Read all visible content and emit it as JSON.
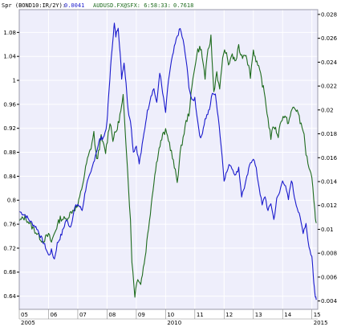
{
  "legend": {
    "series1_label": "Spr (BOND10:IR/2Y):",
    "series1_value": "0.0041",
    "series2_label": "AUDUSD.FX@SFX: 6:58:33:",
    "series2_value": "0.7618"
  },
  "colors": {
    "series1": "#1a1acd",
    "series2": "#1e6b1e",
    "plot_bg": "#eeeefb",
    "grid": "#ffffff",
    "frame": "#9a9aaa"
  },
  "chart_data": {
    "type": "line",
    "x_range": [
      2005.0,
      2015.2
    ],
    "x_tick_labels": [
      "05",
      "06",
      "07",
      "08",
      "09",
      "10",
      "11",
      "12",
      "13",
      "14",
      "15"
    ],
    "x_year_labels": [
      "2005",
      "2010",
      "2015"
    ],
    "left_axis": {
      "range": [
        0.618,
        1.118
      ],
      "ticks": [
        0.64,
        0.68,
        0.72,
        0.76,
        0.8,
        0.84,
        0.88,
        0.92,
        0.96,
        1.0,
        1.04,
        1.08
      ],
      "tick_labels": [
        "0.64",
        "0.68",
        "0.72",
        "0.76",
        "0.8",
        "0.84",
        "0.88",
        "0.92",
        "0.96",
        "1",
        "1.04",
        "1.08"
      ]
    },
    "right_axis": {
      "range": [
        0.0033,
        0.0284
      ],
      "ticks": [
        0.004,
        0.006,
        0.008,
        0.01,
        0.012,
        0.014,
        0.016,
        0.018,
        0.02,
        0.022,
        0.024,
        0.026,
        0.028
      ],
      "tick_labels": [
        "0.004",
        "0.006",
        "0.008",
        "0.01",
        "0.012",
        "0.014",
        "0.016",
        "0.018",
        "0.02",
        "0.022",
        "0.024",
        "0.026",
        "0.028"
      ]
    },
    "series": [
      {
        "name": "Spr (BOND10:IR/2Y)",
        "axis": "right",
        "x": [
          2005.0,
          2005.2,
          2005.4,
          2005.6,
          2005.75,
          2005.9,
          2006.0,
          2006.1,
          2006.2,
          2006.3,
          2006.45,
          2006.6,
          2006.75,
          2006.9,
          2007.0,
          2007.15,
          2007.3,
          2007.45,
          2007.6,
          2007.75,
          2007.9,
          2008.0,
          2008.05,
          2008.12,
          2008.2,
          2008.25,
          2008.3,
          2008.38,
          2008.45,
          2008.5,
          2008.58,
          2008.65,
          2008.72,
          2008.8,
          2008.9,
          2009.0,
          2009.1,
          2009.2,
          2009.35,
          2009.5,
          2009.6,
          2009.7,
          2009.8,
          2009.9,
          2010.0,
          2010.1,
          2010.2,
          2010.3,
          2010.4,
          2010.5,
          2010.6,
          2010.7,
          2010.8,
          2010.9,
          2011.0,
          2011.1,
          2011.2,
          2011.35,
          2011.5,
          2011.6,
          2011.7,
          2011.8,
          2011.9,
          2012.0,
          2012.2,
          2012.4,
          2012.5,
          2012.6,
          2012.75,
          2012.9,
          2013.0,
          2013.1,
          2013.2,
          2013.3,
          2013.4,
          2013.5,
          2013.6,
          2013.7,
          2013.8,
          2013.9,
          2014.0,
          2014.1,
          2014.2,
          2014.3,
          2014.4,
          2014.5,
          2014.6,
          2014.7,
          2014.8,
          2014.9,
          2015.0,
          2015.05,
          2015.1,
          2015.15
        ],
        "y": [
          0.0115,
          0.0112,
          0.0106,
          0.0101,
          0.0093,
          0.0085,
          0.0078,
          0.0082,
          0.0075,
          0.0088,
          0.0096,
          0.0108,
          0.0102,
          0.0118,
          0.0121,
          0.0116,
          0.0138,
          0.0147,
          0.0162,
          0.0175,
          0.0178,
          0.0189,
          0.021,
          0.0235,
          0.026,
          0.0272,
          0.0262,
          0.027,
          0.0247,
          0.0227,
          0.024,
          0.0223,
          0.0199,
          0.0192,
          0.0165,
          0.017,
          0.0155,
          0.017,
          0.0195,
          0.0212,
          0.0218,
          0.0205,
          0.0232,
          0.0214,
          0.0198,
          0.0225,
          0.024,
          0.0252,
          0.0262,
          0.0268,
          0.0258,
          0.0242,
          0.022,
          0.0207,
          0.021,
          0.019,
          0.0175,
          0.0192,
          0.02,
          0.0215,
          0.0212,
          0.0195,
          0.017,
          0.0142,
          0.0155,
          0.0145,
          0.0152,
          0.0128,
          0.014,
          0.0156,
          0.016,
          0.015,
          0.0135,
          0.012,
          0.0128,
          0.0115,
          0.0122,
          0.0108,
          0.0125,
          0.0131,
          0.0142,
          0.0135,
          0.0125,
          0.0142,
          0.0128,
          0.0118,
          0.0109,
          0.0098,
          0.0105,
          0.0085,
          0.0077,
          0.0062,
          0.0047,
          0.0041
        ]
      },
      {
        "name": "AUDUSD.FX@SFX",
        "axis": "left",
        "x": [
          2005.0,
          2005.2,
          2005.4,
          2005.6,
          2005.8,
          2006.0,
          2006.1,
          2006.25,
          2006.4,
          2006.6,
          2006.8,
          2007.0,
          2007.1,
          2007.2,
          2007.3,
          2007.45,
          2007.55,
          2007.65,
          2007.8,
          2007.95,
          2008.1,
          2008.2,
          2008.35,
          2008.5,
          2008.55,
          2008.62,
          2008.7,
          2008.8,
          2008.85,
          2008.95,
          2009.05,
          2009.15,
          2009.3,
          2009.45,
          2009.6,
          2009.75,
          2009.9,
          2010.0,
          2010.1,
          2010.2,
          2010.3,
          2010.4,
          2010.5,
          2010.6,
          2010.7,
          2010.8,
          2010.9,
          2011.0,
          2011.1,
          2011.2,
          2011.25,
          2011.35,
          2011.45,
          2011.55,
          2011.65,
          2011.75,
          2011.85,
          2011.95,
          2012.05,
          2012.15,
          2012.25,
          2012.4,
          2012.5,
          2012.6,
          2012.75,
          2012.9,
          2013.0,
          2013.15,
          2013.25,
          2013.4,
          2013.5,
          2013.6,
          2013.7,
          2013.85,
          2013.95,
          2014.05,
          2014.2,
          2014.35,
          2014.5,
          2014.6,
          2014.7,
          2014.8,
          2014.9,
          2015.0,
          2015.1,
          2015.15
        ],
        "y": [
          0.765,
          0.772,
          0.758,
          0.745,
          0.732,
          0.742,
          0.73,
          0.752,
          0.77,
          0.768,
          0.782,
          0.79,
          0.812,
          0.835,
          0.862,
          0.888,
          0.912,
          0.865,
          0.905,
          0.88,
          0.932,
          0.902,
          0.92,
          0.956,
          0.972,
          0.92,
          0.852,
          0.765,
          0.7,
          0.642,
          0.672,
          0.66,
          0.705,
          0.768,
          0.832,
          0.88,
          0.908,
          0.915,
          0.902,
          0.88,
          0.855,
          0.832,
          0.878,
          0.905,
          0.93,
          0.945,
          0.988,
          1.025,
          1.05,
          1.055,
          1.04,
          1.005,
          1.048,
          1.072,
          0.98,
          1.015,
          0.982,
          1.04,
          1.05,
          1.025,
          1.042,
          1.032,
          1.055,
          1.04,
          1.045,
          1.008,
          1.05,
          1.025,
          1.008,
          0.972,
          0.935,
          0.905,
          0.925,
          0.908,
          0.935,
          0.94,
          0.93,
          0.955,
          0.95,
          0.93,
          0.92,
          0.878,
          0.855,
          0.835,
          0.78,
          0.762
        ]
      }
    ]
  }
}
